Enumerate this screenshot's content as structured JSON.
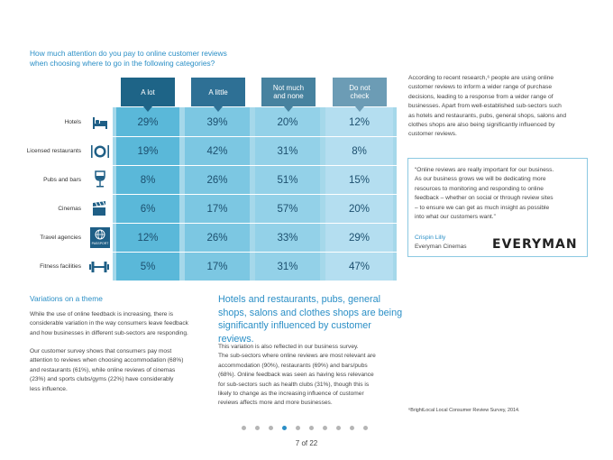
{
  "question": {
    "line1": "How much attention do you pay to online customer reviews",
    "line2": "when choosing where to go in the following categories?"
  },
  "table": {
    "headers": [
      "A lot",
      "A little",
      "Not much and none",
      "Do not check"
    ],
    "header_lines": [
      [
        "A lot"
      ],
      [
        "A little"
      ],
      [
        "Not much",
        "and none"
      ],
      [
        "Do not",
        "check"
      ]
    ],
    "rows": [
      {
        "label": "Hotels",
        "icon": "bed-icon",
        "values": [
          "29%",
          "39%",
          "20%",
          "12%"
        ]
      },
      {
        "label": "Licensed restaurants",
        "icon": "plate-cutlery-icon",
        "values": [
          "19%",
          "42%",
          "31%",
          "8%"
        ]
      },
      {
        "label": "Pubs and bars",
        "icon": "wine-glass-icon",
        "values": [
          "8%",
          "26%",
          "51%",
          "15%"
        ]
      },
      {
        "label": "Cinemas",
        "icon": "clapperboard-icon",
        "values": [
          "6%",
          "17%",
          "57%",
          "20%"
        ]
      },
      {
        "label": "Travel agencies",
        "icon": "passport-icon",
        "values": [
          "12%",
          "26%",
          "33%",
          "29%"
        ]
      },
      {
        "label": "Fitness facilities",
        "icon": "dumbbell-icon",
        "values": [
          "5%",
          "17%",
          "31%",
          "47%"
        ]
      }
    ],
    "passport_text": "PASSPORT",
    "colors": {
      "col1": "#5ab8d9",
      "col2": "#7cc7e2",
      "col3": "#93d1e8",
      "col4": "#b4def0"
    }
  },
  "intro": {
    "lines": [
      "According to recent research,⁶ people are using online",
      "customer reviews to inform a wider range of purchase",
      "decisions, leading to a response from a wider range of",
      "businesses. Apart from well-established sub-sectors such",
      "as hotels and restaurants, pubs, general shops, salons and",
      "clothes shops are also being significantly influenced by",
      "customer reviews."
    ]
  },
  "quote": {
    "lines": [
      "“Online reviews are really important for our business.",
      "As our business grows we will be dedicating more",
      "resources to monitoring and responding to online",
      "feedback – whether on social or through review sites",
      "– to ensure we can get as much insight as possible",
      "into what our customers want.”"
    ],
    "name": "Crispin Lilly",
    "org": "Everyman Cinemas",
    "logo": "EVERYMAN"
  },
  "variations": {
    "title": "Variations on a theme",
    "p1_lines": [
      "While the use of online feedback is increasing, there is",
      "considerable variation in the way consumers leave feedback",
      "and how businesses in different sub-sectors are responding."
    ],
    "p2_lines": [
      "Our customer survey shows that consumers pay most",
      "attention to reviews when choosing accommodation (68%)",
      "and restaurants (61%), while online reviews of cinemas",
      "(23%) and sports clubs/gyms (22%) have considerably",
      "less influence."
    ]
  },
  "highlight": {
    "lines": [
      "Hotels and restaurants, pubs, general",
      "shops, salons and clothes shops are being",
      "significantly influenced by customer reviews."
    ]
  },
  "body": {
    "lines": [
      "This variation is also reflected in our business survey.",
      "The sub-sectors where online reviews are most relevant are",
      "accommodation (90%), restaurants (69%) and bars/pubs",
      "(68%). Online feedback was seen as having less relevance",
      "for sub-sectors such as health clubs (31%), though this is",
      "likely to change as the increasing influence of customer",
      "reviews affects more and more businesses."
    ]
  },
  "footnote": "⁶BrightLocal Local Consumer Review Survey, 2014.",
  "pagination": {
    "label": "7 of 22",
    "total_dots": 10,
    "active_index": 3
  },
  "accent_color": "#2b8fc6"
}
